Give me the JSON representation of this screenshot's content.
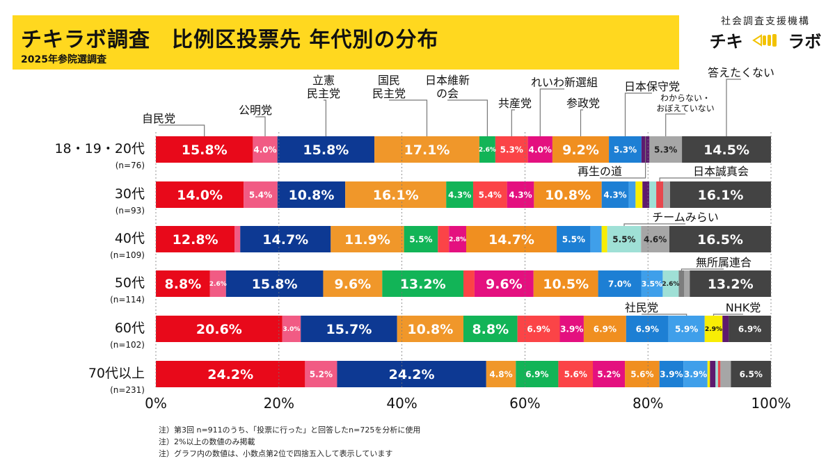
{
  "header": {
    "title": "チキラボ調査　比例区投票先 年代別の分布",
    "subtitle": "2025年参院選調査",
    "org_name": "社会調査支援機構",
    "logo_left": "チキ",
    "logo_right": "ラボ"
  },
  "notes": [
    "注）第3回 n=911のうち、「投票に行った」と回答したn=725を分析に使用",
    "注）2%以上の数値のみ掲載",
    "注）グラフ内の数値は、小数点第2位で四捨五入して表示しています"
  ],
  "chart_data": {
    "type": "bar",
    "orientation": "horizontal",
    "stacked": "100%",
    "x_ticks": [
      "0%",
      "20%",
      "40%",
      "60%",
      "80%",
      "100%"
    ],
    "xlim": [
      0,
      100
    ],
    "grid": true,
    "parties": [
      {
        "name": "自民党",
        "color": "#e8091a"
      },
      {
        "name": "公明党",
        "color": "#f15b84"
      },
      {
        "name": "立憲民主党",
        "color": "#0d3993"
      },
      {
        "name": "国民民主党",
        "color": "#f0972a"
      },
      {
        "name": "日本維新の会",
        "color": "#12b457"
      },
      {
        "name": "共産党",
        "color": "#fb4447"
      },
      {
        "name": "れいわ新選組",
        "color": "#e4107f"
      },
      {
        "name": "参政党",
        "color": "#f08f20"
      },
      {
        "name": "日本保守党",
        "color": "#1d7fd4"
      },
      {
        "name": "社民党",
        "color": "#3f9fea"
      },
      {
        "name": "NHK党",
        "color": "#f8ed05"
      },
      {
        "name": "再生の道",
        "color": "#5e1a6e"
      },
      {
        "name": "チームみらい",
        "color": "#9fe0d6"
      },
      {
        "name": "日本誠真会",
        "color": "#e8474d"
      },
      {
        "name": "無所属連合",
        "color": "#7d7d7d"
      },
      {
        "name": "わからない・おぼえていない",
        "color": "#a6a6a6"
      },
      {
        "name": "答えたくない",
        "color": "#434343"
      }
    ],
    "rows": [
      {
        "label": "18・19・20代",
        "n": "(n=76)",
        "values": [
          15.8,
          4.0,
          15.8,
          17.1,
          2.6,
          5.3,
          4.0,
          9.2,
          5.3,
          0,
          0,
          1.3,
          0,
          0,
          0,
          5.3,
          14.5
        ]
      },
      {
        "label": "30代",
        "n": "(n=93)",
        "values": [
          14.0,
          5.4,
          10.8,
          16.1,
          4.3,
          5.4,
          4.3,
          10.8,
          4.3,
          1.1,
          1.1,
          1.1,
          1.1,
          1.1,
          0,
          1.1,
          16.1
        ]
      },
      {
        "label": "40代",
        "n": "(n=109)",
        "values": [
          12.8,
          0.9,
          14.7,
          11.9,
          5.5,
          1.8,
          2.8,
          14.7,
          5.5,
          1.8,
          0.9,
          0,
          5.5,
          0,
          0,
          4.6,
          16.5
        ]
      },
      {
        "label": "50代",
        "n": "(n=114)",
        "values": [
          8.8,
          2.6,
          15.8,
          9.6,
          13.2,
          1.8,
          9.6,
          10.5,
          7.0,
          3.5,
          0,
          0,
          2.6,
          0,
          0.9,
          0.9,
          13.2
        ]
      },
      {
        "label": "60代",
        "n": "(n=102)",
        "values": [
          20.6,
          3.0,
          15.7,
          10.8,
          8.8,
          6.9,
          3.9,
          6.9,
          6.9,
          5.9,
          2.9,
          1.0,
          0,
          0,
          0,
          0,
          6.9
        ]
      },
      {
        "label": "70代以上",
        "n": "(n=231)",
        "values": [
          24.2,
          5.2,
          24.2,
          4.8,
          6.9,
          5.6,
          5.2,
          5.6,
          3.9,
          3.9,
          0.4,
          0.9,
          0.4,
          0.4,
          0,
          1.7,
          6.5
        ]
      }
    ],
    "callouts": [
      {
        "text": "自民党",
        "party": 0,
        "row": 0
      },
      {
        "text": "公明党",
        "party": 1,
        "row": 0
      },
      {
        "text": "立憲\n民主党",
        "party": 2,
        "row": 0
      },
      {
        "text": "国民\n民主党",
        "party": 3,
        "row": 0
      },
      {
        "text": "日本維新\nの会",
        "party": 4,
        "row": 0
      },
      {
        "text": "共産党",
        "party": 5,
        "row": 0
      },
      {
        "text": "れいわ新選組",
        "party": 6,
        "row": 0
      },
      {
        "text": "参政党",
        "party": 7,
        "row": 0
      },
      {
        "text": "日本保守党",
        "party": 8,
        "row": 0
      },
      {
        "text": "わからない・\nおぼえていない",
        "party": 15,
        "row": 0
      },
      {
        "text": "答えたくない",
        "party": 16,
        "row": 0
      },
      {
        "text": "再生の道",
        "party": 11,
        "row": 0
      },
      {
        "text": "日本誠真会",
        "party": 13,
        "row": 1
      },
      {
        "text": "チームみらい",
        "party": 12,
        "row": 2
      },
      {
        "text": "無所属連合",
        "party": 14,
        "row": 3
      },
      {
        "text": "社民党",
        "party": 9,
        "row": 4
      },
      {
        "text": "NHK党",
        "party": 10,
        "row": 4
      }
    ]
  }
}
